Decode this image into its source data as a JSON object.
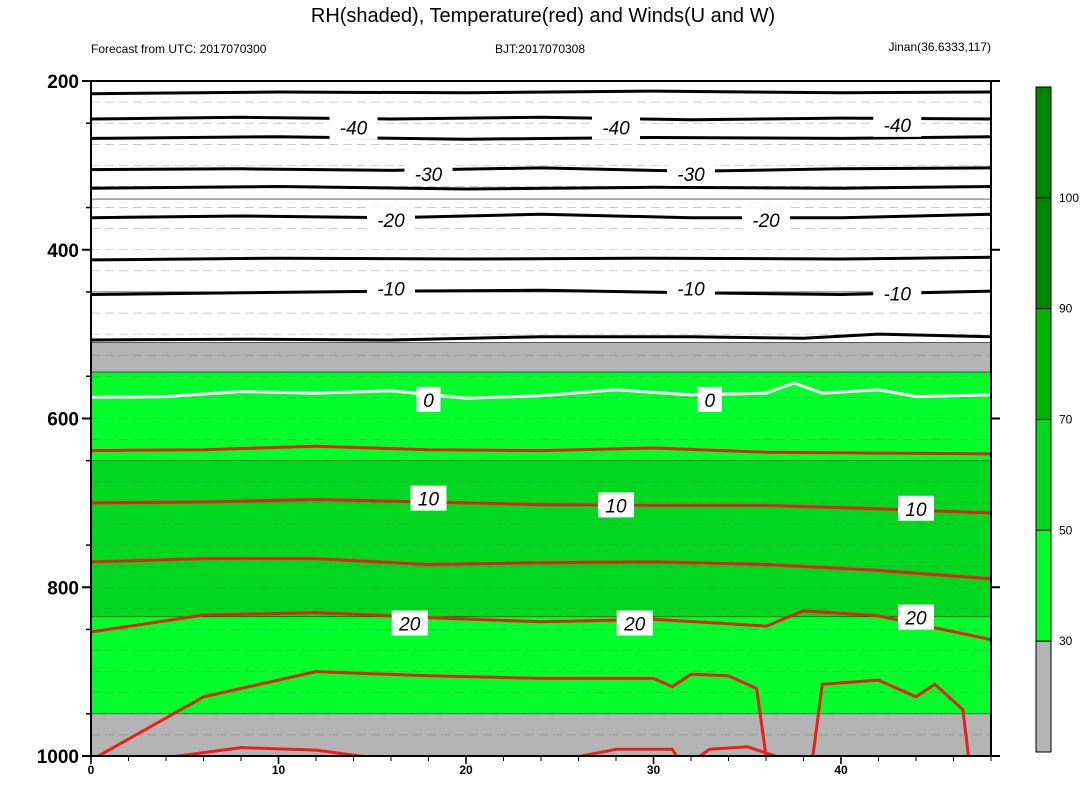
{
  "header": {
    "title": "RH(shaded), Temperature(red) and Winds(U and W)",
    "left_string": "Forecast from UTC: 2017070300",
    "center_string": "BJT:2017070308",
    "right_string": "Jinan(36.6333,117)"
  },
  "colors": {
    "rh_lt30": "#ffffff",
    "rh_30_50": "#b4b4b4",
    "rh_50_70": "#00ff2a",
    "rh_70_90": "#00d81f",
    "rh_90_100": "#00b400",
    "rh_gt100": "#008500",
    "temp_positive": "#e8201a",
    "temp_zero": "#ffffff",
    "temp_negative": "#000000",
    "axis": "#000000"
  },
  "chart_data": {
    "type": "heatmap",
    "title": "RH(shaded), Temperature(red) and Winds(U and W)",
    "x": {
      "ticks": [
        0,
        10,
        20,
        30,
        40
      ],
      "range": [
        0,
        48
      ]
    },
    "y": {
      "ticks": [
        200,
        400,
        600,
        800,
        1000
      ],
      "range": [
        200,
        1000
      ],
      "inverted": true
    },
    "rh_levels": [
      {
        "label": "30",
        "color": "#b4b4b4"
      },
      {
        "label": "50",
        "color": "#00ff2a"
      },
      {
        "label": "70",
        "color": "#00d81f"
      },
      {
        "label": "90",
        "color": "#00b400"
      },
      {
        "label": "100",
        "color": "#008500"
      }
    ],
    "rh_bands": [
      {
        "top": 200,
        "bottom": 340,
        "rh": 20
      },
      {
        "top": 340,
        "bottom": 450,
        "rh": 20
      },
      {
        "top": 450,
        "bottom": 510,
        "rh": 20
      },
      {
        "top": 510,
        "bottom": 545,
        "rh": 40
      },
      {
        "top": 545,
        "bottom": 650,
        "rh": 60
      },
      {
        "top": 650,
        "bottom": 835,
        "rh": 75
      },
      {
        "top": 835,
        "bottom": 950,
        "rh": 60
      },
      {
        "top": 950,
        "bottom": 1000,
        "rh": 40
      }
    ],
    "temperature_isolines": [
      {
        "value": -45,
        "points": [
          [
            0,
            215
          ],
          [
            10,
            213
          ],
          [
            20,
            214
          ],
          [
            30,
            212
          ],
          [
            40,
            214
          ],
          [
            48,
            213
          ]
        ]
      },
      {
        "value": -40,
        "points": [
          [
            0,
            245
          ],
          [
            8,
            243
          ],
          [
            16,
            245
          ],
          [
            24,
            243
          ],
          [
            32,
            246
          ],
          [
            40,
            244
          ],
          [
            48,
            245
          ]
        ]
      },
      {
        "value": -35,
        "points": [
          [
            0,
            268
          ],
          [
            10,
            266
          ],
          [
            20,
            269
          ],
          [
            30,
            267
          ],
          [
            40,
            268
          ],
          [
            48,
            266
          ]
        ]
      },
      {
        "value": -30,
        "points": [
          [
            0,
            305
          ],
          [
            8,
            304
          ],
          [
            16,
            306
          ],
          [
            24,
            303
          ],
          [
            32,
            307
          ],
          [
            40,
            304
          ],
          [
            48,
            303
          ]
        ]
      },
      {
        "value": -25,
        "points": [
          [
            0,
            327
          ],
          [
            10,
            325
          ],
          [
            20,
            328
          ],
          [
            30,
            326
          ],
          [
            40,
            327
          ],
          [
            48,
            325
          ]
        ]
      },
      {
        "value": -20,
        "points": [
          [
            0,
            362
          ],
          [
            8,
            360
          ],
          [
            16,
            362
          ],
          [
            24,
            358
          ],
          [
            32,
            362
          ],
          [
            40,
            362
          ],
          [
            48,
            358
          ]
        ]
      },
      {
        "value": -15,
        "points": [
          [
            0,
            412
          ],
          [
            10,
            410
          ],
          [
            20,
            411
          ],
          [
            30,
            410
          ],
          [
            40,
            411
          ],
          [
            48,
            409
          ]
        ]
      },
      {
        "value": -10,
        "points": [
          [
            0,
            453
          ],
          [
            8,
            451
          ],
          [
            16,
            449
          ],
          [
            24,
            448
          ],
          [
            32,
            451
          ],
          [
            40,
            453
          ],
          [
            48,
            449
          ]
        ]
      },
      {
        "value": -5,
        "points": [
          [
            0,
            507
          ],
          [
            8,
            506
          ],
          [
            16,
            507
          ],
          [
            24,
            503
          ],
          [
            32,
            503
          ],
          [
            38,
            505
          ],
          [
            42,
            500
          ],
          [
            48,
            503
          ]
        ]
      },
      {
        "value": 0,
        "points": [
          [
            0,
            575
          ],
          [
            4,
            574
          ],
          [
            8,
            568
          ],
          [
            12,
            570
          ],
          [
            16,
            567
          ],
          [
            20,
            576
          ],
          [
            24,
            573
          ],
          [
            28,
            566
          ],
          [
            32,
            572
          ],
          [
            36,
            570
          ],
          [
            37.5,
            558
          ],
          [
            39,
            570
          ],
          [
            42,
            566
          ],
          [
            44,
            574
          ],
          [
            48,
            572
          ]
        ]
      },
      {
        "value": 5,
        "points": [
          [
            0,
            638
          ],
          [
            6,
            637
          ],
          [
            12,
            633
          ],
          [
            18,
            637
          ],
          [
            24,
            638
          ],
          [
            30,
            635
          ],
          [
            36,
            640
          ],
          [
            42,
            641
          ],
          [
            48,
            642
          ]
        ]
      },
      {
        "value": 10,
        "points": [
          [
            0,
            700
          ],
          [
            6,
            699
          ],
          [
            12,
            696
          ],
          [
            18,
            699
          ],
          [
            24,
            702
          ],
          [
            30,
            703
          ],
          [
            36,
            703
          ],
          [
            42,
            707
          ],
          [
            48,
            712
          ]
        ]
      },
      {
        "value": 15,
        "points": [
          [
            0,
            770
          ],
          [
            6,
            766
          ],
          [
            12,
            766
          ],
          [
            18,
            773
          ],
          [
            24,
            771
          ],
          [
            30,
            770
          ],
          [
            36,
            773
          ],
          [
            42,
            780
          ],
          [
            48,
            790
          ]
        ]
      },
      {
        "value": 20,
        "points": [
          [
            0,
            853
          ],
          [
            6,
            833
          ],
          [
            12,
            830
          ],
          [
            18,
            836
          ],
          [
            24,
            841
          ],
          [
            30,
            838
          ],
          [
            36,
            846
          ],
          [
            38,
            828
          ],
          [
            42,
            834
          ],
          [
            48,
            862
          ]
        ]
      },
      {
        "value": 25,
        "points": [
          [
            0,
            1005
          ],
          [
            6,
            930
          ],
          [
            12,
            900
          ],
          [
            18,
            905
          ],
          [
            24,
            908
          ],
          [
            30,
            908
          ],
          [
            31,
            918
          ],
          [
            32,
            903
          ],
          [
            34,
            905
          ],
          [
            35.5,
            920
          ],
          [
            36,
            1000
          ]
        ]
      },
      {
        "value": 30,
        "points": [
          [
            3,
            1005
          ],
          [
            8,
            990
          ],
          [
            12,
            993
          ],
          [
            16,
            1005
          ]
        ]
      },
      {
        "value": 30,
        "points": [
          [
            25,
            1005
          ],
          [
            28,
            992
          ],
          [
            31,
            992
          ],
          [
            31.5,
            1010
          ]
        ]
      },
      {
        "value": 30,
        "points": [
          [
            31.8,
            1010
          ],
          [
            33,
            992
          ],
          [
            35,
            989
          ],
          [
            36.5,
            1000
          ]
        ]
      },
      {
        "value": 25,
        "points": [
          [
            38.5,
            1000
          ],
          [
            39,
            915
          ],
          [
            42,
            910
          ],
          [
            44,
            930
          ],
          [
            45,
            915
          ],
          [
            46.5,
            945
          ],
          [
            46.8,
            1000
          ]
        ]
      }
    ],
    "contour_labels": [
      {
        "text": "-40",
        "x": 14,
        "y": 255
      },
      {
        "text": "-40",
        "x": 28,
        "y": 255
      },
      {
        "text": "-40",
        "x": 43,
        "y": 252
      },
      {
        "text": "-30",
        "x": 18,
        "y": 310
      },
      {
        "text": "-30",
        "x": 32,
        "y": 310
      },
      {
        "text": "-20",
        "x": 16,
        "y": 365
      },
      {
        "text": "-20",
        "x": 36,
        "y": 365
      },
      {
        "text": "-10",
        "x": 16,
        "y": 446
      },
      {
        "text": "-10",
        "x": 32,
        "y": 446
      },
      {
        "text": "-10",
        "x": 43,
        "y": 452
      },
      {
        "text": "0",
        "x": 18,
        "y": 578
      },
      {
        "text": "0",
        "x": 33,
        "y": 578
      },
      {
        "text": "10",
        "x": 18,
        "y": 695
      },
      {
        "text": "10",
        "x": 28,
        "y": 703
      },
      {
        "text": "10",
        "x": 44,
        "y": 707
      },
      {
        "text": "20",
        "x": 17,
        "y": 843
      },
      {
        "text": "20",
        "x": 29,
        "y": 843
      },
      {
        "text": "20",
        "x": 44,
        "y": 836
      }
    ]
  }
}
